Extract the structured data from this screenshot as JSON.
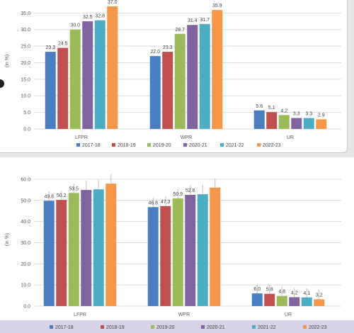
{
  "colors": {
    "series": [
      "#4a7ec2",
      "#c0504d",
      "#9bbb59",
      "#8064a2",
      "#4bacc6",
      "#f79646"
    ],
    "grid": "#dcdcdc",
    "axis_text": "#595959",
    "legend_band": "#d7d2e6",
    "error_bar": "#bfbfbf"
  },
  "chart_data": [
    {
      "type": "bar",
      "ylabel": "(in %)",
      "ylim": [
        0,
        38.5
      ],
      "yticks": [
        "0.0",
        "5.0",
        "10.0",
        "15.0",
        "20.0",
        "25.0",
        "30.0",
        "35.0"
      ],
      "grid": true,
      "legend_position": "bottom",
      "categories": [
        "LFPR",
        "WPR",
        "UR"
      ],
      "series": [
        {
          "name": "2017-18",
          "values": [
            23.3,
            22.0,
            5.6
          ],
          "labels": [
            "23.3",
            "22.0",
            "5.6"
          ]
        },
        {
          "name": "2018-19",
          "values": [
            24.5,
            23.3,
            5.1
          ],
          "labels": [
            "24.5",
            "23.3",
            "5.1"
          ]
        },
        {
          "name": "2019-20",
          "values": [
            30.0,
            28.7,
            4.2
          ],
          "labels": [
            "30.0",
            "28.7",
            "4.2"
          ]
        },
        {
          "name": "2020-21",
          "values": [
            32.5,
            31.4,
            3.3
          ],
          "labels": [
            "32.5",
            "31.4",
            "3.3"
          ]
        },
        {
          "name": "2021-22",
          "values": [
            32.8,
            31.7,
            3.3
          ],
          "labels": [
            "32.8",
            "31.7",
            "3.3"
          ]
        },
        {
          "name": "2022-23",
          "values": [
            37.0,
            35.9,
            2.9
          ],
          "labels": [
            "37.0",
            "35.9",
            "2.9"
          ]
        }
      ]
    },
    {
      "type": "bar",
      "ylabel": "(in %)",
      "ylim": [
        0,
        66
      ],
      "yticks": [
        "0.0",
        "10.0",
        "20.0",
        "30.0",
        "40.0",
        "50.0",
        "60.0"
      ],
      "grid": true,
      "legend_position": "bottom",
      "error_bars": true,
      "categories": [
        "LFPR",
        "WPR",
        "UR"
      ],
      "series": [
        {
          "name": "2017-18",
          "values": [
            49.8,
            46.8,
            6.0
          ],
          "labels": [
            "49.8",
            "46.8",
            "6.0"
          ]
        },
        {
          "name": "2018-19",
          "values": [
            50.2,
            47.3,
            5.8
          ],
          "labels": [
            "50.2",
            "47.3",
            "5.8"
          ]
        },
        {
          "name": "2019-20",
          "values": [
            53.5,
            50.9,
            4.8
          ],
          "labels": [
            "53.5",
            "50.9",
            "4.8"
          ]
        },
        {
          "name": "2020-21",
          "values": [
            54.9,
            52.6,
            4.2
          ],
          "labels": [
            "",
            "52.6",
            "4.2"
          ]
        },
        {
          "name": "2021-22",
          "values": [
            55.2,
            52.9,
            4.1
          ],
          "labels": [
            "",
            "",
            "4.1"
          ]
        },
        {
          "name": "2022-23",
          "values": [
            57.9,
            56.0,
            3.2
          ],
          "labels": [
            "",
            "",
            "3.2"
          ]
        }
      ]
    }
  ]
}
